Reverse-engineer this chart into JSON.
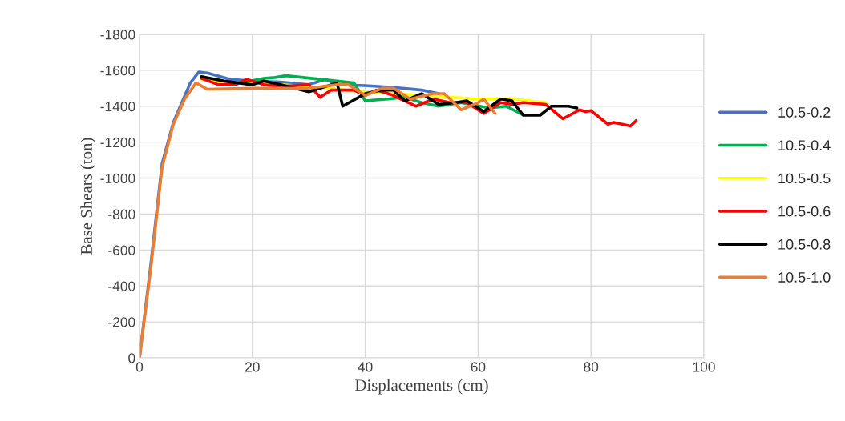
{
  "chart_data": {
    "type": "line",
    "xlabel": "Displacements (cm)",
    "ylabel": "Base Shears (ton)",
    "xlim": [
      0,
      100
    ],
    "xticks": [
      0,
      20,
      40,
      60,
      80,
      100
    ],
    "ylim": [
      0,
      -1800
    ],
    "yticks": [
      0,
      -200,
      -400,
      -600,
      -800,
      -1000,
      -1200,
      -1400,
      -1600,
      -1800
    ],
    "grid": true,
    "legend": "right",
    "marker": "none",
    "line_style": "solid",
    "series": [
      {
        "name": "10.5-0.2",
        "color": "#4472c4",
        "x": [
          0,
          2,
          4,
          6,
          9,
          10.5,
          12,
          16,
          20,
          25,
          30,
          33,
          35,
          40,
          45,
          50,
          53
        ],
        "values": [
          0,
          -520,
          -1080,
          -1310,
          -1530,
          -1590,
          -1585,
          -1550,
          -1540,
          -1535,
          -1520,
          -1550,
          -1520,
          -1515,
          -1505,
          -1490,
          -1470
        ]
      },
      {
        "name": "10.5-0.4",
        "color": "#00b050",
        "x": [
          14,
          18,
          22,
          24,
          26,
          35,
          38,
          40,
          44,
          47,
          50,
          53,
          57,
          62,
          65,
          68
        ],
        "values": [
          -1530,
          -1530,
          -1555,
          -1560,
          -1570,
          -1540,
          -1530,
          -1430,
          -1440,
          -1450,
          -1420,
          -1400,
          -1420,
          -1390,
          -1400,
          -1350
        ]
      },
      {
        "name": "10.5-0.5",
        "color": "#ffff00",
        "x": [
          11,
          15,
          20,
          30,
          40,
          50,
          60,
          66,
          72
        ],
        "values": [
          -1550,
          -1530,
          -1530,
          -1510,
          -1480,
          -1460,
          -1440,
          -1440,
          -1420
        ]
      },
      {
        "name": "10.5-0.6",
        "color": "#ff0000",
        "x": [
          11,
          14,
          17,
          19,
          22,
          25,
          30,
          32,
          34,
          38,
          40,
          42,
          45,
          49,
          52,
          55,
          58,
          61,
          64,
          66,
          68,
          72,
          75,
          78,
          79,
          80,
          83,
          84,
          87,
          88
        ],
        "values": [
          -1555,
          -1520,
          -1520,
          -1550,
          -1520,
          -1510,
          -1520,
          -1450,
          -1490,
          -1490,
          -1460,
          -1490,
          -1460,
          -1400,
          -1440,
          -1420,
          -1420,
          -1360,
          -1420,
          -1410,
          -1420,
          -1410,
          -1330,
          -1380,
          -1370,
          -1375,
          -1300,
          -1310,
          -1290,
          -1320
        ]
      },
      {
        "name": "10.5-0.8",
        "color": "#000000",
        "x": [
          11,
          15,
          20,
          22,
          25,
          30,
          35,
          36,
          40,
          43,
          45,
          47,
          50,
          53,
          56,
          58,
          61,
          64,
          66,
          68,
          71,
          73,
          76,
          77.5
        ],
        "values": [
          -1565,
          -1540,
          -1520,
          -1540,
          -1520,
          -1480,
          -1530,
          -1400,
          -1470,
          -1490,
          -1490,
          -1430,
          -1470,
          -1410,
          -1420,
          -1430,
          -1370,
          -1440,
          -1430,
          -1350,
          -1350,
          -1400,
          -1400,
          -1390
        ]
      },
      {
        "name": "10.5-1.0",
        "color": "#ed7d31",
        "x": [
          0,
          2,
          4,
          6,
          8,
          10,
          12,
          20,
          30,
          35,
          37,
          40,
          43,
          45,
          48,
          52,
          54,
          57,
          60,
          61,
          63
        ],
        "values": [
          0,
          -500,
          -1060,
          -1300,
          -1440,
          -1530,
          -1495,
          -1500,
          -1500,
          -1520,
          -1520,
          -1460,
          -1500,
          -1500,
          -1440,
          -1470,
          -1470,
          -1380,
          -1420,
          -1440,
          -1360
        ]
      }
    ]
  }
}
